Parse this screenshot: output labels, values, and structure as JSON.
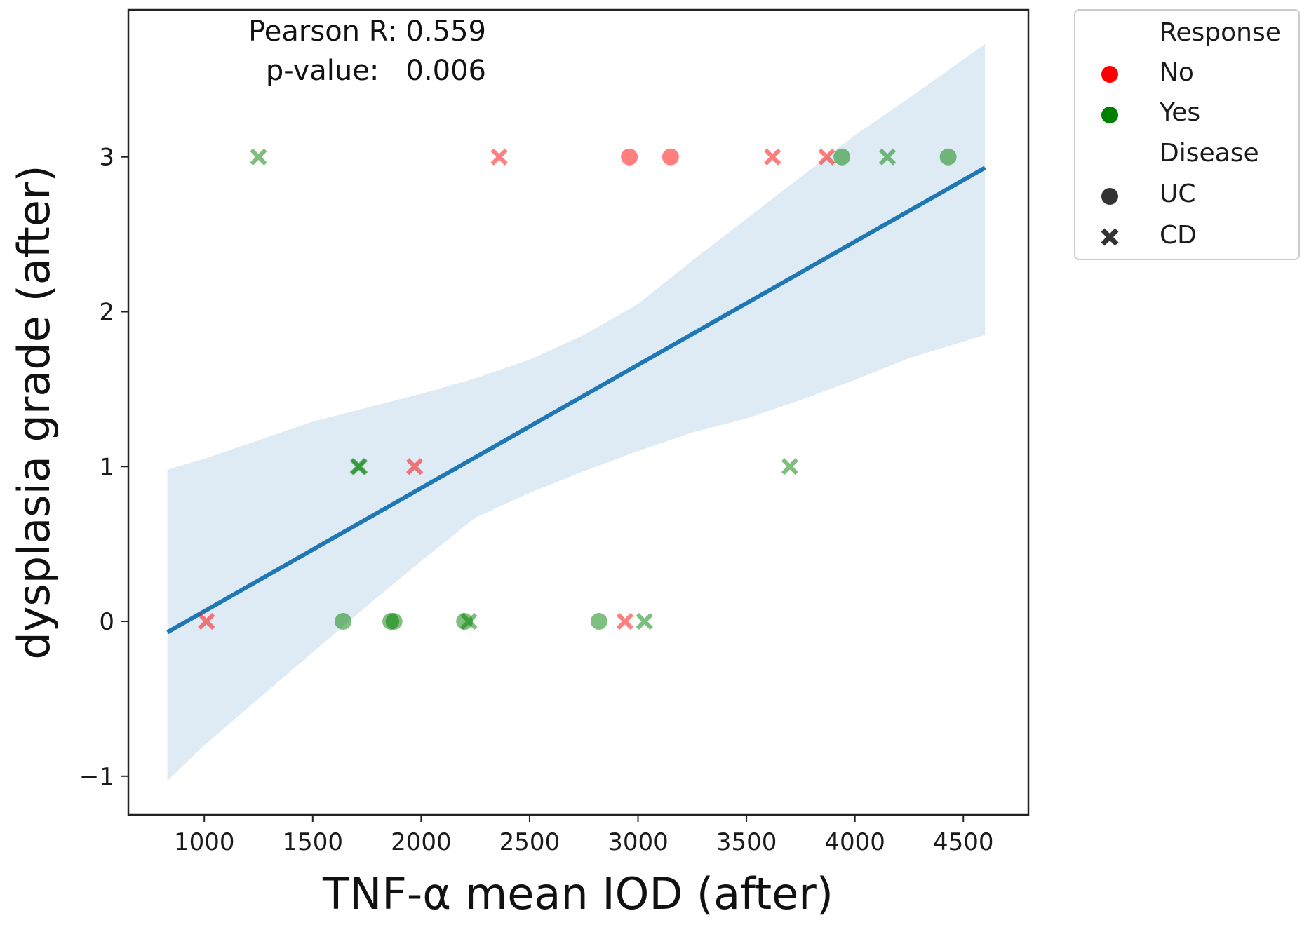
{
  "chart_data": {
    "type": "scatter",
    "title": "",
    "xlabel": "TNF-α mean IOD (after)",
    "ylabel": "dysplasia grade (after)",
    "xlim": [
      650,
      4800
    ],
    "ylim": [
      -1.25,
      3.95
    ],
    "xticks": [
      1000,
      1500,
      2000,
      2500,
      3000,
      3500,
      4000,
      4500
    ],
    "yticks": [
      -1,
      0,
      1,
      2,
      3
    ],
    "grid": false,
    "annotation": {
      "line1": "Pearson R: 0.559",
      "line2": "p-value:   0.006"
    },
    "legend": {
      "placement": "outside-right-top",
      "hue_title": "Response",
      "hue_entries": [
        {
          "label": "No",
          "color": "#ff0000"
        },
        {
          "label": "Yes",
          "color": "#008000"
        }
      ],
      "style_title": "Disease",
      "style_entries": [
        {
          "label": "UC",
          "marker": "circle"
        },
        {
          "label": "CD",
          "marker": "x"
        }
      ]
    },
    "colors": {
      "No": "#ff0000",
      "Yes": "#008000",
      "regression": "#1f77b4",
      "ci_band": "#1f77b4"
    },
    "points": [
      {
        "x": 1010,
        "y": 0,
        "response": "No",
        "disease": "CD"
      },
      {
        "x": 1250,
        "y": 3,
        "response": "Yes",
        "disease": "CD"
      },
      {
        "x": 1640,
        "y": 0,
        "response": "Yes",
        "disease": "UC"
      },
      {
        "x": 1710,
        "y": 1,
        "response": "Yes",
        "disease": "CD"
      },
      {
        "x": 1715,
        "y": 1,
        "response": "Yes",
        "disease": "CD"
      },
      {
        "x": 1860,
        "y": 0,
        "response": "Yes",
        "disease": "UC"
      },
      {
        "x": 1875,
        "y": 0,
        "response": "Yes",
        "disease": "UC"
      },
      {
        "x": 1970,
        "y": 1,
        "response": "No",
        "disease": "CD"
      },
      {
        "x": 2200,
        "y": 0,
        "response": "Yes",
        "disease": "UC"
      },
      {
        "x": 2220,
        "y": 0,
        "response": "Yes",
        "disease": "CD"
      },
      {
        "x": 2360,
        "y": 3,
        "response": "No",
        "disease": "CD"
      },
      {
        "x": 2820,
        "y": 0,
        "response": "Yes",
        "disease": "UC"
      },
      {
        "x": 2940,
        "y": 0,
        "response": "No",
        "disease": "CD"
      },
      {
        "x": 2960,
        "y": 3,
        "response": "No",
        "disease": "UC"
      },
      {
        "x": 3030,
        "y": 0,
        "response": "Yes",
        "disease": "CD"
      },
      {
        "x": 3150,
        "y": 3,
        "response": "No",
        "disease": "UC"
      },
      {
        "x": 3620,
        "y": 3,
        "response": "No",
        "disease": "CD"
      },
      {
        "x": 3700,
        "y": 1,
        "response": "Yes",
        "disease": "CD"
      },
      {
        "x": 3870,
        "y": 3,
        "response": "No",
        "disease": "CD"
      },
      {
        "x": 3940,
        "y": 3,
        "response": "Yes",
        "disease": "UC"
      },
      {
        "x": 4150,
        "y": 3,
        "response": "Yes",
        "disease": "CD"
      },
      {
        "x": 4430,
        "y": 3,
        "response": "Yes",
        "disease": "UC"
      }
    ],
    "regression": {
      "x": [
        830,
        4600
      ],
      "y": [
        -0.07,
        2.93
      ]
    },
    "ci_band": {
      "x": [
        830,
        1000,
        1250,
        1500,
        1750,
        2000,
        2250,
        2500,
        2750,
        3000,
        3250,
        3500,
        3750,
        4000,
        4250,
        4600
      ],
      "upper": [
        0.98,
        1.05,
        1.17,
        1.29,
        1.38,
        1.47,
        1.57,
        1.69,
        1.85,
        2.05,
        2.33,
        2.6,
        2.87,
        3.14,
        3.38,
        3.73
      ],
      "lower": [
        -1.03,
        -0.8,
        -0.5,
        -0.2,
        0.1,
        0.39,
        0.67,
        0.83,
        0.97,
        1.1,
        1.22,
        1.31,
        1.43,
        1.56,
        1.7,
        1.85
      ]
    }
  }
}
